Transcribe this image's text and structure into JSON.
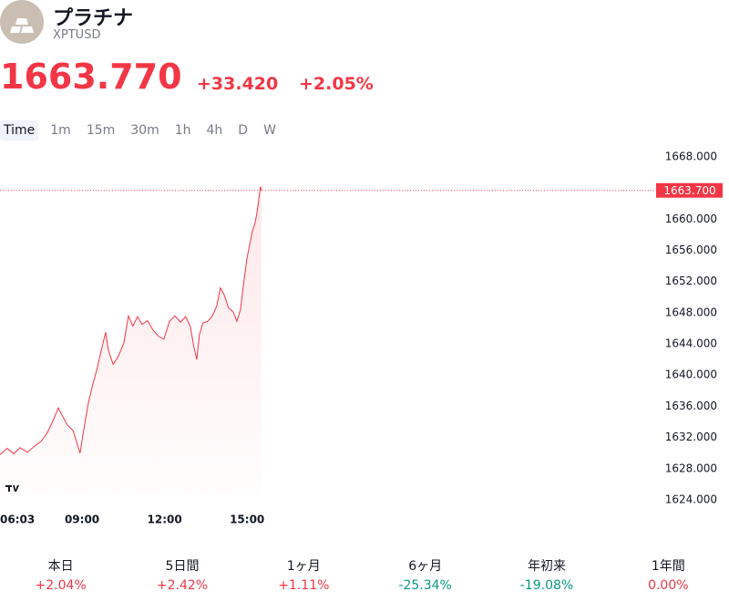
{
  "header": {
    "title": "プラチナ",
    "symbol": "XPTUSD",
    "price": "1663.770",
    "change": "+33.420",
    "change_percent": "+2.05%"
  },
  "tabs": [
    "Time",
    "1m",
    "15m",
    "30m",
    "1h",
    "4h",
    "D",
    "W"
  ],
  "chart_data": {
    "type": "line",
    "color": "#f23645",
    "x": [
      6.05,
      6.31,
      6.55,
      6.78,
      7.04,
      7.31,
      7.54,
      7.77,
      7.97,
      8.17,
      8.3,
      8.5,
      8.7,
      8.83,
      8.96,
      9.1,
      9.26,
      9.43,
      9.59,
      9.76,
      9.89,
      9.99,
      10.16,
      10.35,
      10.55,
      10.72,
      10.88,
      11.05,
      11.22,
      11.41,
      11.61,
      11.81,
      12.01,
      12.21,
      12.41,
      12.61,
      12.8,
      12.97,
      13.1,
      13.2,
      13.3,
      13.43,
      13.6,
      13.77,
      13.93,
      14.06,
      14.2,
      14.36,
      14.53,
      14.66,
      14.79,
      14.92,
      15.02,
      15.12,
      15.22,
      15.32,
      15.39,
      15.45,
      15.52,
      15.55
    ],
    "values": [
      1629.8,
      1630.6,
      1629.9,
      1630.7,
      1630.1,
      1630.9,
      1631.5,
      1632.6,
      1634.1,
      1635.8,
      1634.9,
      1633.6,
      1632.9,
      1631.5,
      1630,
      1633.1,
      1636.4,
      1638.9,
      1641,
      1643.6,
      1645.5,
      1643.2,
      1641.4,
      1642.4,
      1644.1,
      1647.6,
      1646.3,
      1647.5,
      1646.5,
      1647,
      1645.8,
      1645,
      1644.6,
      1646.9,
      1647.6,
      1646.8,
      1647.5,
      1646.2,
      1643.6,
      1642,
      1645.2,
      1646.7,
      1646.9,
      1647.6,
      1648.9,
      1651.2,
      1650.3,
      1648.6,
      1648.1,
      1646.9,
      1648.4,
      1652.1,
      1654.8,
      1656.7,
      1658.4,
      1659.5,
      1660.8,
      1662.4,
      1664.2,
      1663.7
    ],
    "xlim": [
      6.05,
      29.9
    ],
    "xticks": [
      {
        "value": 6.05,
        "label": "06:03"
      },
      {
        "value": 9,
        "label": "09:00"
      },
      {
        "value": 12,
        "label": "12:00"
      },
      {
        "value": 15,
        "label": "15:00"
      }
    ],
    "ylim": [
      1623,
      1670
    ],
    "yticks": [
      {
        "value": 1624,
        "label": "1624.000"
      },
      {
        "value": 1628,
        "label": "1628.000"
      },
      {
        "value": 1632,
        "label": "1632.000"
      },
      {
        "value": 1636,
        "label": "1636.000"
      },
      {
        "value": 1640,
        "label": "1640.000"
      },
      {
        "value": 1644,
        "label": "1644.000"
      },
      {
        "value": 1648,
        "label": "1648.000"
      },
      {
        "value": 1652,
        "label": "1652.000"
      },
      {
        "value": 1656,
        "label": "1656.000"
      },
      {
        "value": 1660,
        "label": "1660.000"
      },
      {
        "value": 1668,
        "label": "1668.000"
      }
    ],
    "last_price": {
      "value": 1663.7,
      "label": "1663.700"
    }
  },
  "performance": [
    {
      "label": "本日",
      "value": "+2.04%",
      "color": "#f23645"
    },
    {
      "label": "5日間",
      "value": "+2.42%",
      "color": "#f23645"
    },
    {
      "label": "1ヶ月",
      "value": "+1.11%",
      "color": "#f23645"
    },
    {
      "label": "6ヶ月",
      "value": "-25.34%",
      "color": "#089981"
    },
    {
      "label": "年初来",
      "value": "-19.08%",
      "color": "#089981"
    },
    {
      "label": "1年間",
      "value": "0.00%",
      "color": "#f23645"
    }
  ]
}
